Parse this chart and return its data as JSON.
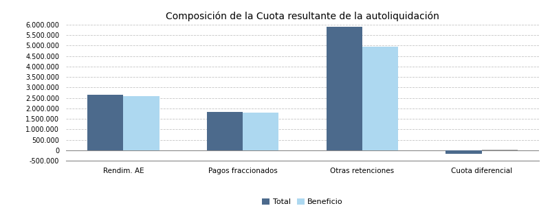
{
  "title": "Composición de la Cuota resultante de la autoliquidación",
  "categories": [
    "Rendim. AE",
    "Pagos fraccionados",
    "Otras retenciones",
    "Cuota diferencial"
  ],
  "total_values": [
    2650000,
    1820000,
    5900000,
    -180000
  ],
  "beneficio_values": [
    2580000,
    1790000,
    4950000,
    40000
  ],
  "total_color": "#4C6A8C",
  "beneficio_color": "#ADD8F0",
  "beneficio_cuota_color": "#A0A0A0",
  "background_color": "#FFFFFF",
  "plot_bg_color": "#FFFFFF",
  "ylim": [
    -500000,
    6000000
  ],
  "yticks": [
    -500000,
    0,
    500000,
    1000000,
    1500000,
    2000000,
    2500000,
    3000000,
    3500000,
    4000000,
    4500000,
    5000000,
    5500000,
    6000000
  ],
  "bar_width": 0.3,
  "legend_labels": [
    "Total",
    "Beneficio"
  ],
  "title_fontsize": 10
}
